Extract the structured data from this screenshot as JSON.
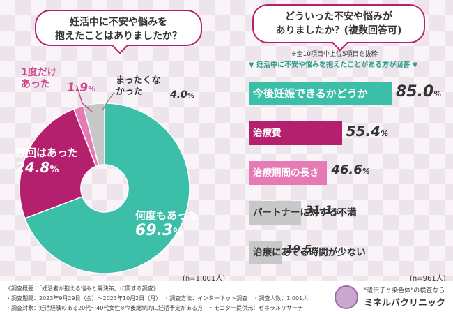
{
  "left": {
    "question": [
      "妊活中に不安や悩みを",
      "抱えたことはありましたか？"
    ],
    "n_note": "(n=1,001人)"
  },
  "right": {
    "question": [
      "どういった不安や悩みが",
      "ありましたか？(複数回答可)"
    ],
    "note1": "※全10項目中上位5項目を抜粋",
    "note2": "▼ 妊活中に不安や悩みを抱えたことがある方が回答 ▼",
    "n_note": "(n=961人)"
  },
  "chart_data": [
    {
      "type": "pie",
      "categories": [
        "何度もあった",
        "数回はあった",
        "1度だけあった",
        "まったくなかった"
      ],
      "values": [
        69.3,
        24.8,
        1.9,
        4.0
      ],
      "colors": [
        "#3cbfa8",
        "#b5206e",
        "#e57ab5",
        "#c8c8c8"
      ],
      "labels": [
        {
          "text": "何度もあった",
          "pct": "69.3",
          "unit": "%"
        },
        {
          "text": "数回はあった",
          "pct": "24.8",
          "unit": "%"
        },
        {
          "text": "1度だけあった",
          "pct": "1.9",
          "unit": "%"
        },
        {
          "text": "まったくなかった",
          "pct": "4.0",
          "unit": "%"
        }
      ]
    },
    {
      "type": "bar",
      "categories": [
        "今後妊娠できるかどうか",
        "治療費",
        "治療期間の長さ",
        "パートナーに対する不満",
        "治療にあてる時間が少ない"
      ],
      "values": [
        85.0,
        55.4,
        46.6,
        31.1,
        19.5
      ],
      "colors": [
        "#3cbfa8",
        "#b5206e",
        "#e57ab5",
        "#c8c8c8",
        "#c8c8c8"
      ],
      "labels": [
        {
          "pct": "85.0",
          "unit": "%"
        },
        {
          "pct": "55.4",
          "unit": "%"
        },
        {
          "pct": "46.6",
          "unit": "%"
        },
        {
          "pct": "31.1",
          "unit": "%"
        },
        {
          "pct": "19.5",
          "unit": "%"
        }
      ]
    }
  ],
  "footer": {
    "lines": [
      "《調査概要：「妊活者が抱える悩みと解決策」に関する調査》",
      "・調査期間：2023年9月29日（金）〜2023年10月2日（月）　・調査方法：インターネット調査　・調査人数：1,001人",
      "・調査対象：妊活経験のある20代〜40代女性※今後継続的に妊活予定がある方　・モニター提供元：ゼネラルリサーチ"
    ],
    "brand_tagline": "\"遺伝子と染色体\"の検査なら",
    "brand_name": "ミネルバクリニック"
  }
}
